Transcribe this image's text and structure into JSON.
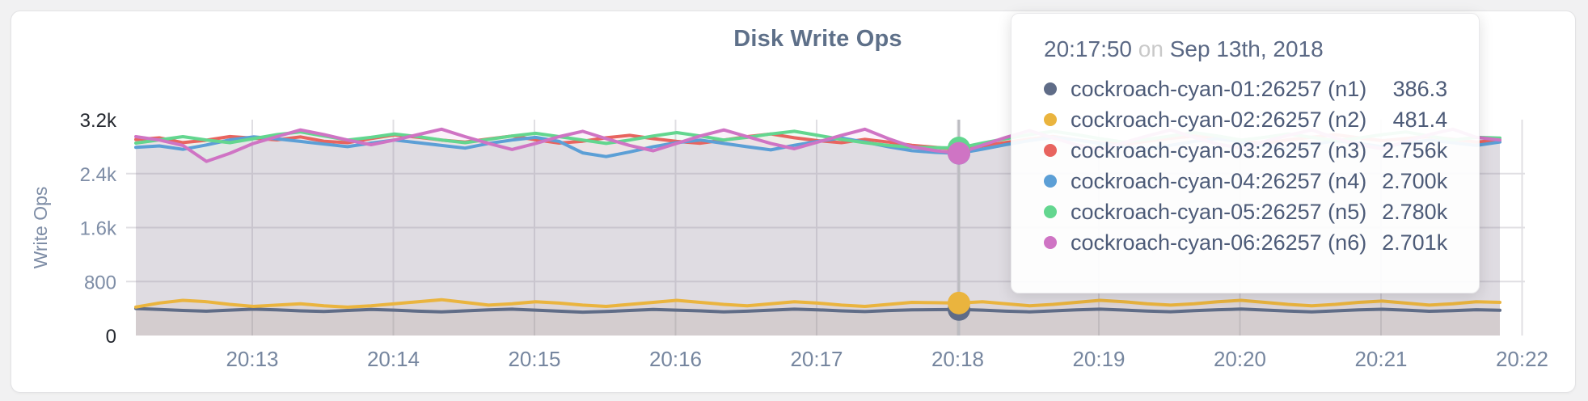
{
  "panel": {
    "title": "Disk Write Ops"
  },
  "tooltip": {
    "time": "20:17:50",
    "separator": "on",
    "date": "Sep 13th, 2018",
    "rows": [
      {
        "name": "cockroach-cyan-01:26257 (n1)",
        "value": "386.3",
        "color": "#5f6c87"
      },
      {
        "name": "cockroach-cyan-02:26257 (n2)",
        "value": "481.4",
        "color": "#eab43e"
      },
      {
        "name": "cockroach-cyan-03:26257 (n3)",
        "value": "2.756k",
        "color": "#e8645f"
      },
      {
        "name": "cockroach-cyan-04:26257 (n4)",
        "value": "2.700k",
        "color": "#5c9fd6"
      },
      {
        "name": "cockroach-cyan-05:26257 (n5)",
        "value": "2.780k",
        "color": "#63d68f"
      },
      {
        "name": "cockroach-cyan-06:26257 (n6)",
        "value": "2.701k",
        "color": "#cf74c4"
      }
    ]
  },
  "chart_data": {
    "type": "line",
    "title": "Disk Write Ops",
    "xlabel": "",
    "ylabel": "Write Ops",
    "ylim": [
      0,
      3200
    ],
    "grid": true,
    "legend_position": "tooltip",
    "yticks": [
      {
        "label": "3.2k",
        "value": 3200,
        "strong": true,
        "grid": false
      },
      {
        "label": "2.4k",
        "value": 2400,
        "strong": false,
        "grid": true
      },
      {
        "label": "1.6k",
        "value": 1600,
        "strong": false,
        "grid": true
      },
      {
        "label": "800",
        "value": 800,
        "strong": false,
        "grid": true
      },
      {
        "label": "0",
        "value": 0,
        "strong": true,
        "grid": false
      }
    ],
    "xticks": [
      "20:13",
      "20:14",
      "20:15",
      "20:16",
      "20:17",
      "20:18",
      "20:19",
      "20:20",
      "20:21",
      "20:22"
    ],
    "hover": {
      "index": 35,
      "time": "20:17:50",
      "date": "Sep 13th, 2018",
      "xtick": "20:18"
    },
    "theme": {
      "grid": "#e0dfe3",
      "tick": "#7e8da6",
      "tick_strong": "#24282f",
      "xtick_color": "#76869f",
      "axis_title": "#7e8da6",
      "hover_line": "#bcbcc1"
    },
    "series": [
      {
        "name": "cockroach-cyan-01:26257 (n1)",
        "color": "#5f6c87",
        "hover_value": 386.3,
        "values": [
          400,
          386,
          371,
          361,
          376,
          391,
          381,
          366,
          356,
          371,
          386,
          376,
          361,
          351,
          366,
          381,
          391,
          376,
          361,
          346,
          356,
          371,
          386,
          376,
          366,
          351,
          361,
          376,
          391,
          381,
          365,
          355,
          370,
          380,
          384,
          386,
          376,
          361,
          351,
          366,
          381,
          391,
          378,
          362,
          352,
          368,
          382,
          392,
          378,
          362,
          350,
          366,
          380,
          390,
          376,
          360,
          368,
          382,
          374
        ]
      },
      {
        "name": "cockroach-cyan-02:26257 (n2)",
        "color": "#eab43e",
        "hover_value": 481.4,
        "values": [
          422,
          482,
          521,
          501,
          461,
          432,
          451,
          471,
          441,
          421,
          441,
          471,
          501,
          531,
          491,
          451,
          471,
          501,
          481,
          451,
          431,
          461,
          491,
          521,
          491,
          461,
          441,
          471,
          501,
          481,
          451,
          431,
          461,
          491,
          486,
          481,
          501,
          471,
          441,
          461,
          491,
          521,
          501,
          471,
          451,
          471,
          501,
          521,
          491,
          461,
          441,
          461,
          491,
          511,
          481,
          451,
          471,
          501,
          491
        ]
      },
      {
        "name": "cockroach-cyan-03:26257 (n3)",
        "color": "#e8645f",
        "hover_value": 2756,
        "values": [
          2905,
          2930,
          2860,
          2895,
          2950,
          2925,
          2900,
          2945,
          2880,
          2858,
          2920,
          2975,
          2940,
          2898,
          2868,
          2915,
          2958,
          2902,
          2852,
          2880,
          2932,
          2968,
          2918,
          2878,
          2850,
          2898,
          2948,
          2988,
          2932,
          2888,
          2858,
          2908,
          2868,
          2820,
          2790,
          2756,
          2810,
          2862,
          2912,
          2952,
          2900,
          2858,
          2830,
          2880,
          2922,
          2958,
          2918,
          2878,
          2848,
          2902,
          2940,
          2978,
          2930,
          2888,
          2920,
          2950,
          2908,
          2868,
          2898
        ]
      },
      {
        "name": "cockroach-cyan-04:26257 (n4)",
        "color": "#5c9fd6",
        "hover_value": 2700,
        "values": [
          2790,
          2810,
          2760,
          2825,
          2900,
          2945,
          2915,
          2878,
          2838,
          2800,
          2852,
          2898,
          2858,
          2818,
          2778,
          2848,
          2898,
          2938,
          2878,
          2708,
          2652,
          2722,
          2798,
          2858,
          2898,
          2848,
          2798,
          2752,
          2820,
          2878,
          2928,
          2868,
          2798,
          2740,
          2715,
          2700,
          2762,
          2830,
          2888,
          2938,
          2898,
          2848,
          2798,
          2758,
          2820,
          2878,
          2918,
          2868,
          2808,
          2758,
          2828,
          2888,
          2848,
          2798,
          2848,
          2898,
          2858,
          2818,
          2868
        ]
      },
      {
        "name": "cockroach-cyan-05:26257 (n5)",
        "color": "#63d68f",
        "hover_value": 2780,
        "values": [
          2852,
          2900,
          2948,
          2898,
          2858,
          2918,
          2978,
          3018,
          2958,
          2898,
          2938,
          2988,
          2948,
          2898,
          2858,
          2908,
          2958,
          2998,
          2948,
          2898,
          2848,
          2898,
          2958,
          3008,
          2958,
          2898,
          2938,
          2988,
          3028,
          2968,
          2908,
          2858,
          2818,
          2792,
          2785,
          2780,
          2852,
          2918,
          2978,
          3028,
          2978,
          2918,
          2868,
          2908,
          2958,
          3008,
          2958,
          2898,
          2938,
          2988,
          2938,
          2888,
          2928,
          2978,
          3018,
          2958,
          2898,
          2938,
          2928
        ]
      },
      {
        "name": "cockroach-cyan-06:26257 (n6)",
        "color": "#cf74c4",
        "hover_value": 2701,
        "values": [
          2948,
          2898,
          2818,
          2582,
          2702,
          2848,
          2948,
          3048,
          2978,
          2898,
          2828,
          2898,
          2978,
          3058,
          2948,
          2848,
          2758,
          2848,
          2948,
          3028,
          2918,
          2818,
          2738,
          2848,
          2958,
          3048,
          2948,
          2848,
          2768,
          2868,
          2968,
          3058,
          2918,
          2798,
          2740,
          2701,
          2822,
          2938,
          3038,
          2928,
          2828,
          2758,
          2858,
          2958,
          3048,
          2938,
          2838,
          2778,
          2878,
          2968,
          3048,
          2928,
          2828,
          2768,
          2878,
          2978,
          3058,
          2938,
          2898
        ]
      }
    ]
  }
}
